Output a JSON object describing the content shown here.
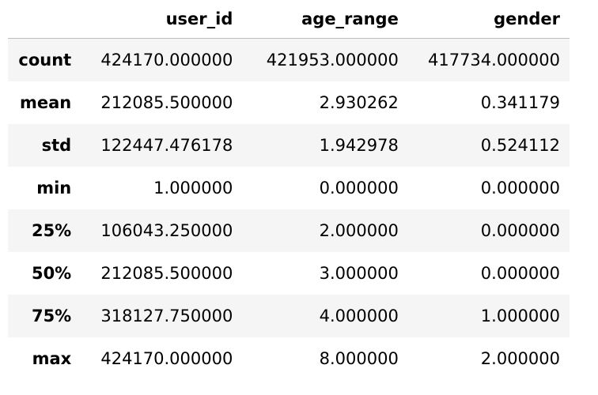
{
  "table": {
    "index_header": "",
    "columns": [
      "user_id",
      "age_range",
      "gender"
    ],
    "rows": [
      {
        "label": "count",
        "values": [
          "424170.000000",
          "421953.000000",
          "417734.000000"
        ]
      },
      {
        "label": "mean",
        "values": [
          "212085.500000",
          "2.930262",
          "0.341179"
        ]
      },
      {
        "label": "std",
        "values": [
          "122447.476178",
          "1.942978",
          "0.524112"
        ]
      },
      {
        "label": "min",
        "values": [
          "1.000000",
          "0.000000",
          "0.000000"
        ]
      },
      {
        "label": "25%",
        "values": [
          "106043.250000",
          "2.000000",
          "0.000000"
        ]
      },
      {
        "label": "50%",
        "values": [
          "212085.500000",
          "3.000000",
          "0.000000"
        ]
      },
      {
        "label": "75%",
        "values": [
          "318127.750000",
          "4.000000",
          "1.000000"
        ]
      },
      {
        "label": "max",
        "values": [
          "424170.000000",
          "8.000000",
          "2.000000"
        ]
      }
    ]
  }
}
